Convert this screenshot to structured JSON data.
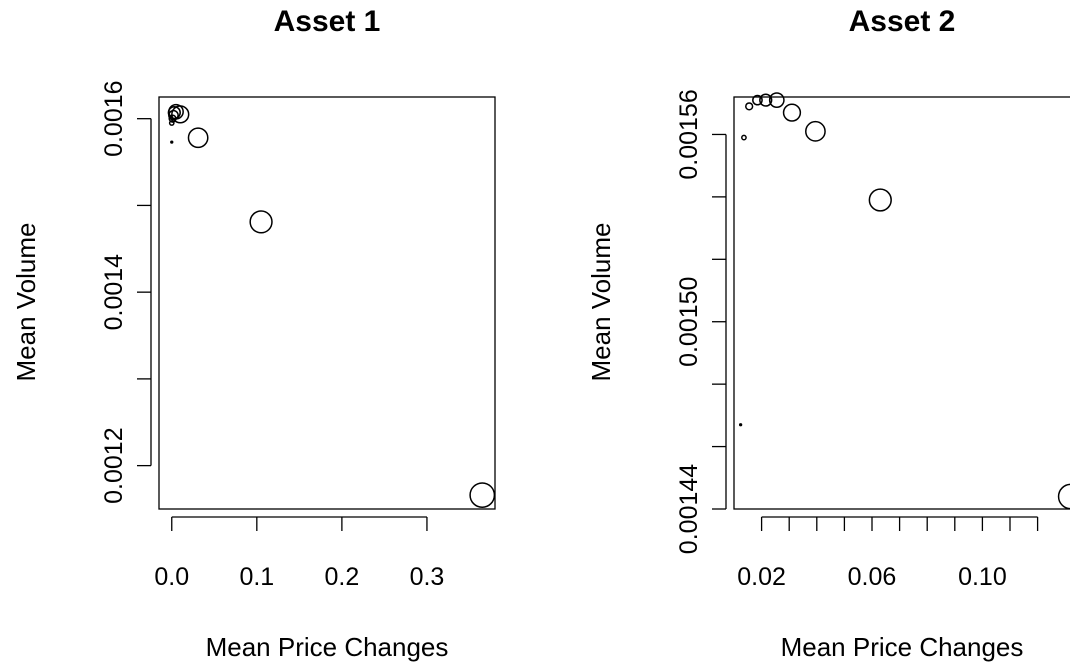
{
  "chart_data": [
    {
      "type": "scatter",
      "title": "Asset 1",
      "xlabel": "Mean Price Changes",
      "ylabel": "Mean Volume",
      "xlim": [
        -0.015,
        0.38
      ],
      "ylim": [
        0.00115,
        0.001625
      ],
      "x_ticks": [
        0.0,
        0.1,
        0.2,
        0.3
      ],
      "x_tick_labels": [
        "0.0",
        "0.1",
        "0.2",
        "0.3"
      ],
      "y_ticks": [
        0.0012,
        0.0013,
        0.0014,
        0.0015,
        0.0016
      ],
      "y_tick_labels": [
        "0.0012",
        "",
        "0.0014",
        "",
        "0.0016"
      ],
      "grid": false,
      "points": [
        {
          "x": 0.0,
          "y": 0.001573,
          "size": 1
        },
        {
          "x": 0.0,
          "y": 0.001595,
          "size": 2
        },
        {
          "x": 0.001,
          "y": 0.0016,
          "size": 3
        },
        {
          "x": 0.002,
          "y": 0.001604,
          "size": 4
        },
        {
          "x": 0.003,
          "y": 0.001607,
          "size": 5
        },
        {
          "x": 0.005,
          "y": 0.001608,
          "size": 6
        },
        {
          "x": 0.01,
          "y": 0.001605,
          "size": 7
        },
        {
          "x": 0.031,
          "y": 0.001578,
          "size": 8
        },
        {
          "x": 0.105,
          "y": 0.001481,
          "size": 9
        },
        {
          "x": 0.365,
          "y": 0.001166,
          "size": 10
        }
      ]
    },
    {
      "type": "scatter",
      "title": "Asset 2",
      "xlabel": "Mean Price Changes",
      "ylabel": "Mean Volume",
      "xlim": [
        0.01,
        0.135
      ],
      "ylim": [
        0.00144,
        0.001572
      ],
      "x_ticks": [
        0.02,
        0.03,
        0.04,
        0.05,
        0.06,
        0.07,
        0.08,
        0.09,
        0.1,
        0.11,
        0.12
      ],
      "x_tick_labels": [
        "0.02",
        "",
        "",
        "",
        "0.06",
        "",
        "",
        "",
        "0.10",
        "",
        ""
      ],
      "y_ticks": [
        0.00144,
        0.00146,
        0.00148,
        0.0015,
        0.00152,
        0.00154,
        0.00156
      ],
      "y_tick_labels": [
        "0.00144",
        "",
        "",
        "0.00150",
        "",
        "",
        "0.00156"
      ],
      "grid": false,
      "points": [
        {
          "x": 0.0124,
          "y": 0.001467,
          "size": 1
        },
        {
          "x": 0.0136,
          "y": 0.001559,
          "size": 2
        },
        {
          "x": 0.0155,
          "y": 0.001569,
          "size": 3
        },
        {
          "x": 0.0185,
          "y": 0.001571,
          "size": 4
        },
        {
          "x": 0.0215,
          "y": 0.001571,
          "size": 5
        },
        {
          "x": 0.0255,
          "y": 0.001571,
          "size": 6
        },
        {
          "x": 0.031,
          "y": 0.001567,
          "size": 7
        },
        {
          "x": 0.0395,
          "y": 0.001561,
          "size": 8
        },
        {
          "x": 0.063,
          "y": 0.001539,
          "size": 9
        },
        {
          "x": 0.132,
          "y": 0.001444,
          "size": 10
        }
      ]
    }
  ]
}
